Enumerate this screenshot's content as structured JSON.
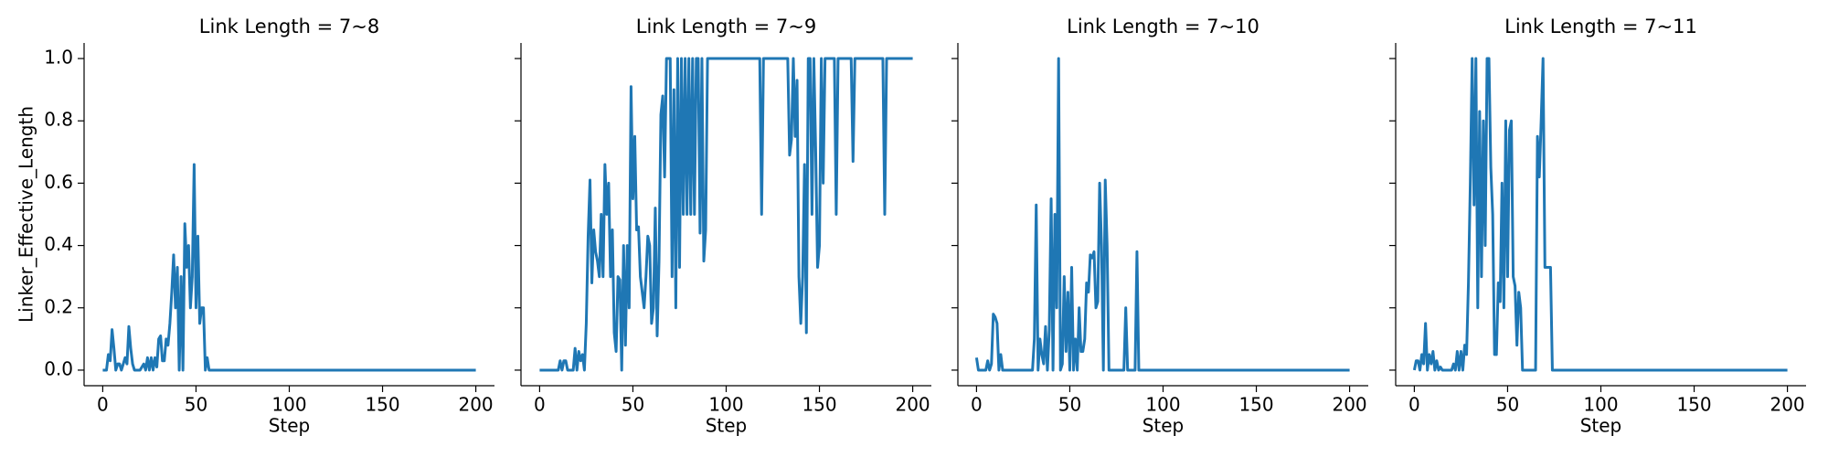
{
  "chart_data": [
    {
      "type": "line",
      "title": "Link Length = 7~8",
      "xlabel": "Step",
      "ylabel": "Linker_Effective_Length",
      "color": "#1f77b4",
      "x": [
        0,
        1,
        2,
        3,
        4,
        5,
        6,
        7,
        8,
        9,
        10,
        11,
        12,
        13,
        14,
        15,
        16,
        17,
        20,
        22,
        23,
        24,
        25,
        26,
        27,
        28,
        29,
        30,
        31,
        32,
        33,
        34,
        35,
        36,
        37,
        38,
        39,
        40,
        41,
        42,
        43,
        44,
        45,
        46,
        47,
        48,
        49,
        50,
        51,
        52,
        53,
        54,
        55,
        56,
        57,
        58,
        200
      ],
      "values": [
        0,
        0,
        0,
        0.05,
        0.03,
        0.13,
        0.07,
        0,
        0.02,
        0.02,
        0,
        0.02,
        0.04,
        0.02,
        0.14,
        0.07,
        0.02,
        0,
        0,
        0.02,
        0,
        0.04,
        0,
        0.04,
        0,
        0.04,
        0.01,
        0.1,
        0.11,
        0.03,
        0.03,
        0.1,
        0.08,
        0.15,
        0.25,
        0.37,
        0.2,
        0.33,
        0,
        0.3,
        0,
        0.47,
        0.33,
        0.4,
        0.2,
        0.3,
        0.66,
        0.2,
        0.43,
        0.15,
        0.2,
        0.2,
        0,
        0.04,
        0,
        0,
        0
      ],
      "xlim": [
        -10,
        210
      ],
      "xticks": [
        0,
        50,
        100,
        150,
        200
      ],
      "ylim": [
        -0.05,
        1.05
      ],
      "yticks": [
        {
          "value": 0,
          "label": "0.0"
        },
        {
          "value": 0.2,
          "label": "0.2"
        },
        {
          "value": 0.4,
          "label": "0.4"
        },
        {
          "value": 0.6,
          "label": "0.6"
        },
        {
          "value": 0.8,
          "label": "0.8"
        },
        {
          "value": 1,
          "label": "1.0"
        }
      ]
    },
    {
      "type": "line",
      "title": "Link Length = 7~9",
      "xlabel": "Step",
      "color": "#1f77b4",
      "x": [
        0,
        10,
        11,
        12,
        13,
        14,
        15,
        16,
        18,
        19,
        20,
        21,
        22,
        23,
        24,
        25,
        26,
        27,
        28,
        29,
        30,
        31,
        32,
        33,
        34,
        35,
        36,
        37,
        38,
        39,
        40,
        41,
        42,
        43,
        44,
        45,
        46,
        47,
        48,
        49,
        50,
        51,
        52,
        53,
        54,
        55,
        56,
        57,
        58,
        59,
        60,
        61,
        62,
        63,
        64,
        65,
        66,
        67,
        68,
        69,
        70,
        71,
        72,
        73,
        74,
        75,
        76,
        77,
        78,
        79,
        80,
        81,
        82,
        83,
        84,
        85,
        86,
        87,
        88,
        89,
        90,
        100,
        118,
        119,
        120,
        133,
        134,
        135,
        136,
        137,
        138,
        139,
        140,
        141,
        142,
        143,
        144,
        145,
        146,
        147,
        148,
        149,
        150,
        151,
        152,
        153,
        158,
        159,
        160,
        167,
        168,
        169,
        184,
        185,
        186,
        200
      ],
      "values": [
        0,
        0,
        0.03,
        0,
        0.03,
        0.03,
        0,
        0,
        0,
        0.07,
        0,
        0.06,
        0.03,
        0.05,
        0,
        0.15,
        0.43,
        0.61,
        0.28,
        0.45,
        0.38,
        0.35,
        0.3,
        0.5,
        0.3,
        0.66,
        0.5,
        0.6,
        0.3,
        0.45,
        0.12,
        0.06,
        0.3,
        0.29,
        0,
        0.4,
        0.08,
        0.4,
        0.2,
        0.91,
        0.55,
        0.75,
        0.45,
        0.46,
        0.3,
        0.25,
        0.2,
        0.3,
        0.43,
        0.4,
        0.15,
        0.2,
        0.52,
        0.11,
        0.35,
        0.82,
        0.88,
        0.62,
        1,
        1,
        1,
        0.3,
        0.9,
        0.2,
        1,
        0.33,
        1,
        0.5,
        1,
        0.5,
        1,
        0.5,
        1,
        0.5,
        1,
        1,
        0.44,
        1,
        0.35,
        0.45,
        1,
        1,
        1,
        0.5,
        1,
        1,
        0.69,
        0.74,
        1,
        0.75,
        0.93,
        0.3,
        0.15,
        0.3,
        0.66,
        0.12,
        1,
        1,
        0.5,
        1,
        0.7,
        0.33,
        0.4,
        1,
        0.6,
        1,
        1,
        0.5,
        1,
        1,
        0.67,
        1,
        1,
        0.5,
        1,
        1
      ],
      "xlim": [
        -10,
        210
      ],
      "xticks": [
        0,
        50,
        100,
        150,
        200
      ]
    },
    {
      "type": "line",
      "title": "Link Length = 7~10",
      "xlabel": "Step",
      "color": "#1f77b4",
      "x": [
        0,
        1,
        5,
        6,
        7,
        8,
        9,
        10,
        11,
        12,
        13,
        14,
        30,
        31,
        32,
        33,
        34,
        35,
        36,
        37,
        38,
        39,
        40,
        41,
        42,
        43,
        44,
        45,
        46,
        47,
        48,
        49,
        50,
        51,
        52,
        53,
        54,
        55,
        56,
        57,
        58,
        59,
        60,
        61,
        62,
        63,
        64,
        65,
        66,
        67,
        68,
        69,
        70,
        71,
        79,
        80,
        81,
        85,
        86,
        87,
        200
      ],
      "values": [
        0.04,
        0,
        0,
        0.03,
        0,
        0.02,
        0.18,
        0.17,
        0.15,
        0,
        0.05,
        0,
        0,
        0.1,
        0.53,
        0,
        0.1,
        0.05,
        0.02,
        0.14,
        0,
        0.13,
        0.55,
        0,
        0.5,
        0.2,
        1,
        0,
        0.02,
        0.3,
        0.06,
        0.25,
        0,
        0.33,
        0,
        0.1,
        0,
        0.2,
        0.06,
        0.06,
        0.1,
        0.28,
        0.25,
        0.37,
        0.36,
        0.38,
        0.2,
        0.22,
        0.6,
        0.4,
        0,
        0.61,
        0.4,
        0,
        0,
        0.2,
        0,
        0,
        0.38,
        0,
        0
      ],
      "xlim": [
        -10,
        210
      ],
      "xticks": [
        0,
        50,
        100,
        150,
        200
      ]
    },
    {
      "type": "line",
      "title": "Link Length = 7~11",
      "xlabel": "Step",
      "color": "#1f77b4",
      "x": [
        0,
        1,
        2,
        3,
        4,
        5,
        6,
        7,
        8,
        9,
        10,
        11,
        12,
        13,
        14,
        15,
        20,
        21,
        22,
        23,
        24,
        25,
        26,
        27,
        28,
        29,
        30,
        31,
        32,
        33,
        34,
        35,
        36,
        37,
        38,
        39,
        40,
        41,
        42,
        43,
        44,
        45,
        46,
        47,
        48,
        49,
        50,
        51,
        52,
        53,
        54,
        55,
        56,
        57,
        58,
        59,
        65,
        66,
        67,
        68,
        69,
        70,
        73,
        74,
        200
      ],
      "values": [
        0,
        0.03,
        0.03,
        0,
        0.05,
        0.02,
        0.15,
        0,
        0.05,
        0.02,
        0.06,
        0,
        0.03,
        0,
        0.01,
        0,
        0,
        0.02,
        0,
        0.06,
        0,
        0.06,
        0,
        0.08,
        0.05,
        0.28,
        0.6,
        1,
        0.53,
        1,
        0.2,
        0.83,
        0.3,
        0.8,
        0.4,
        1,
        1,
        0.65,
        0.5,
        0.05,
        0.05,
        0.28,
        0.22,
        0.6,
        0.2,
        0.8,
        0.3,
        0.77,
        0.8,
        0.3,
        0.27,
        0.08,
        0.25,
        0.2,
        0,
        0,
        0,
        0.75,
        0.62,
        0.8,
        1,
        0.33,
        0.33,
        0,
        0
      ],
      "xlim": [
        -10,
        210
      ],
      "xticks": [
        0,
        50,
        100,
        150,
        200
      ]
    }
  ]
}
